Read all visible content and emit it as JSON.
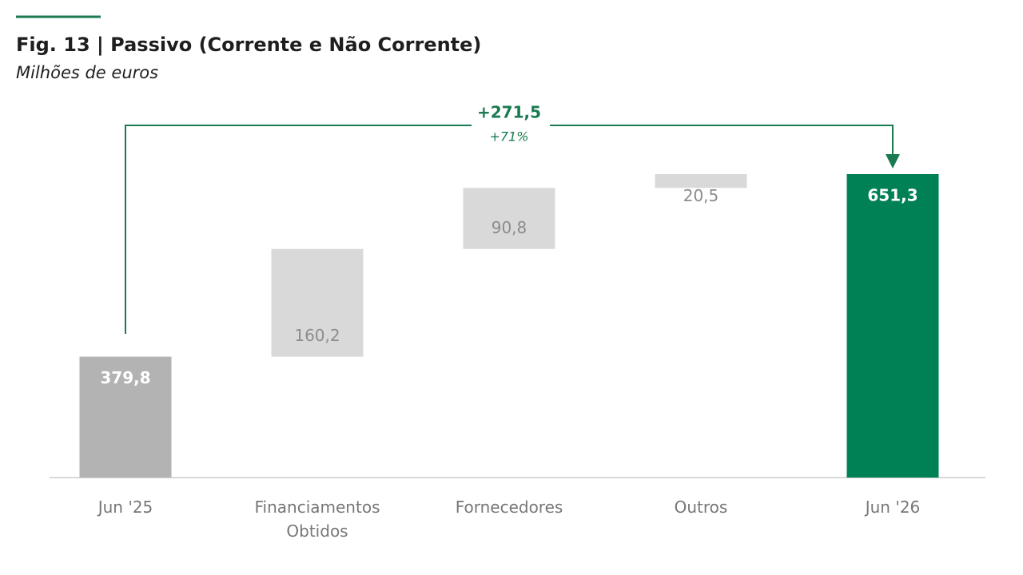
{
  "chart_data": {
    "type": "waterfall",
    "title": "Fig. 13 | Passivo (Corrente e Não Corrente)",
    "subtitle": "Milhões de euros",
    "categories": [
      "Jun '25",
      "Financiamentos Obtidos",
      "Fornecedores",
      "Outros",
      "Jun '26"
    ],
    "values": [
      379.8,
      160.2,
      90.8,
      20.5,
      651.3
    ],
    "value_labels": [
      "379,8",
      "160,2",
      "90,8",
      "20,5",
      "651,3"
    ],
    "measure": [
      "absolute",
      "relative",
      "relative",
      "relative",
      "total"
    ],
    "colors": [
      "#b3b3b3",
      "#d9d9d9",
      "#d9d9d9",
      "#d9d9d9",
      "#008055"
    ],
    "ylim": [
      200,
      700
    ],
    "annotation": {
      "text": "+271,5",
      "subtext": "+71%"
    }
  }
}
